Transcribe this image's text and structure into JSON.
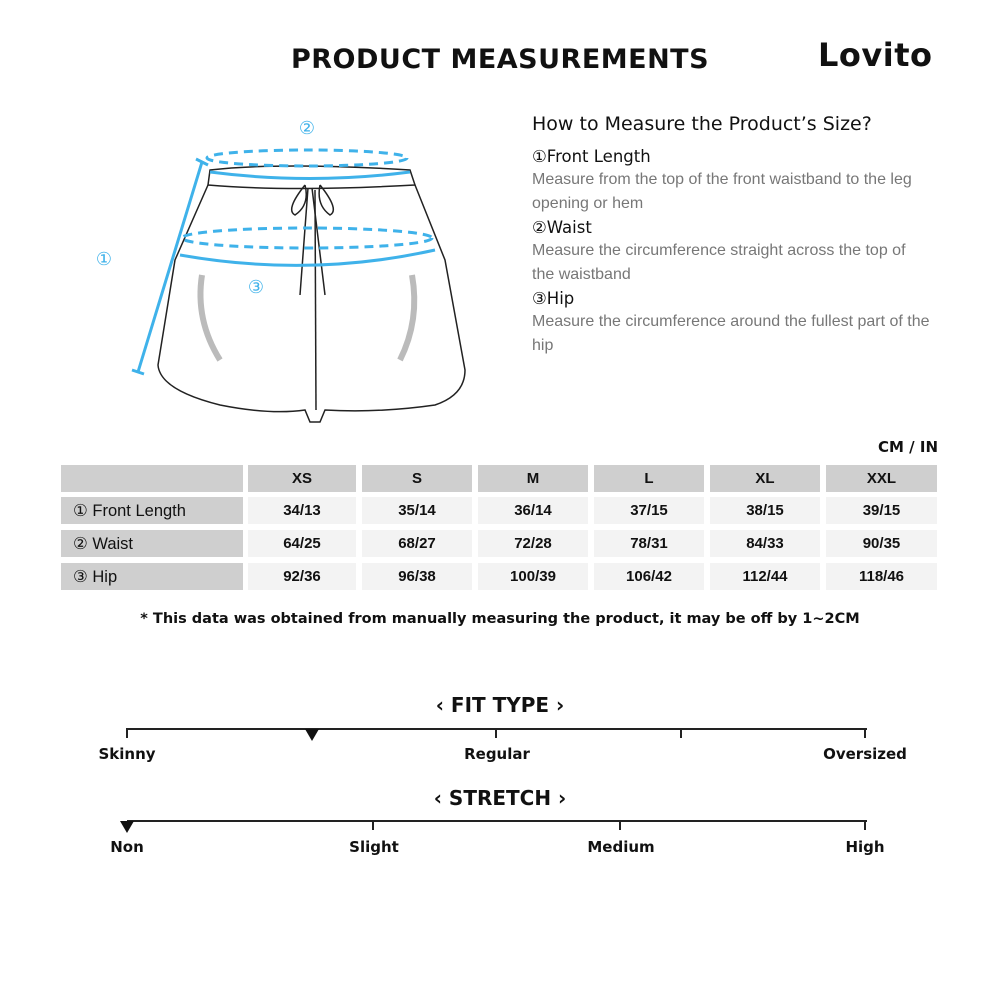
{
  "header": {
    "title": "PRODUCT MEASUREMENTS",
    "brand": "Lovito"
  },
  "guide": {
    "heading": "How to Measure the Product’s Size?",
    "items": [
      {
        "name": "①Front Length",
        "desc": "Measure from the top of the front waistband to the leg opening or hem"
      },
      {
        "name": "②Waist",
        "desc": "Measure the circumference straight across the top of the waistband"
      },
      {
        "name": "③Hip",
        "desc": "Measure the circumference around the fullest part of the hip"
      }
    ],
    "diagram_labels": [
      "①",
      "②",
      "③"
    ],
    "accent": "#3fb2ea"
  },
  "table": {
    "unit": "CM / IN",
    "sizes": [
      "XS",
      "S",
      "M",
      "L",
      "XL",
      "XXL"
    ],
    "rows": [
      {
        "label": "① Front Length",
        "values": [
          "34/13",
          "35/14",
          "36/14",
          "37/15",
          "38/15",
          "39/15"
        ]
      },
      {
        "label": "② Waist",
        "values": [
          "64/25",
          "68/27",
          "72/28",
          "78/31",
          "84/33",
          "90/35"
        ]
      },
      {
        "label": "③ Hip",
        "values": [
          "92/36",
          "96/38",
          "100/39",
          "106/42",
          "112/44",
          "118/46"
        ]
      }
    ]
  },
  "note": "* This data was obtained from manually measuring the product, it may be off by 1~2CM",
  "fit": {
    "title": "‹ FIT TYPE ›",
    "labels": [
      "Skinny",
      "Regular",
      "Oversized"
    ],
    "level": 0.25
  },
  "stretch": {
    "title": "‹ STRETCH ›",
    "labels": [
      "Non",
      "Slight",
      "Medium",
      "High"
    ],
    "level": 0
  }
}
